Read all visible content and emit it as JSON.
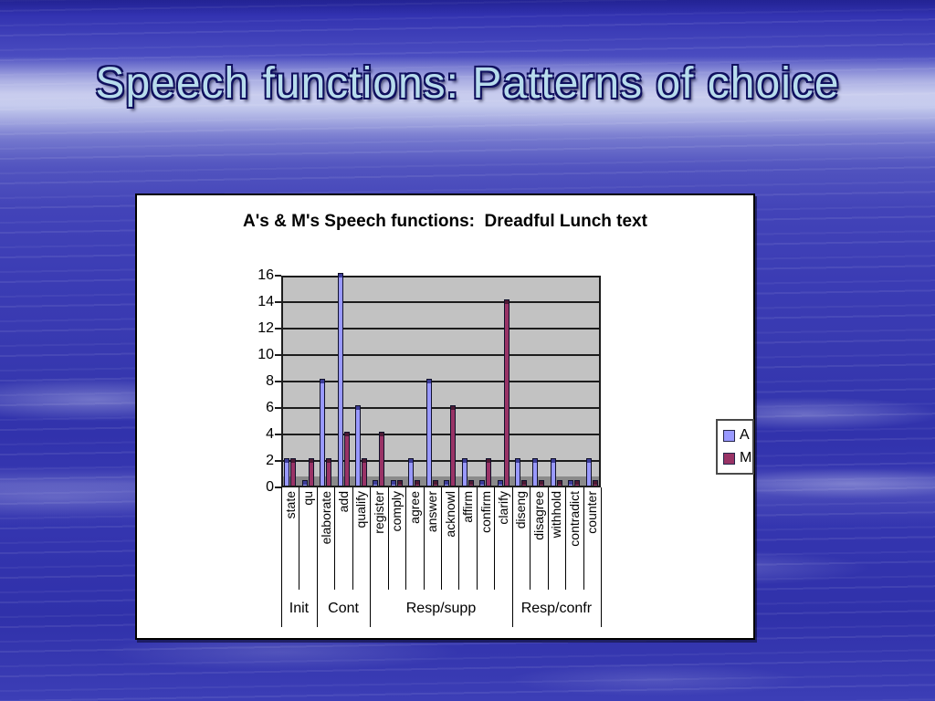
{
  "slide": {
    "title": "Speech functions: Patterns of choice"
  },
  "chart_data": {
    "type": "bar",
    "title": "A's & M's Speech functions:  Dreadful Lunch text",
    "categories": [
      "state",
      "qu",
      "elaborate",
      "add",
      "qualify",
      "register",
      "comply",
      "agree",
      "answer",
      "acknowl",
      "affirm",
      "confirm",
      "clarify",
      "diseng",
      "disagree",
      "withhold",
      "contradict",
      "counter"
    ],
    "groups": [
      {
        "label": "Init",
        "count": 2
      },
      {
        "label": "Cont",
        "count": 3
      },
      {
        "label": "Resp/supp",
        "count": 8
      },
      {
        "label": "Resp/confr",
        "count": 5
      }
    ],
    "series": [
      {
        "name": "A",
        "color": "#9999ff",
        "cap_color": "#3d3d99",
        "values": [
          2,
          0,
          8,
          16,
          6,
          0,
          0,
          2,
          8,
          0,
          2,
          0,
          0,
          2,
          2,
          2,
          0,
          2
        ]
      },
      {
        "name": "M",
        "color": "#993366",
        "cap_color": "#4d1a33",
        "values": [
          2,
          2,
          2,
          4,
          2,
          4,
          0,
          0,
          0,
          6,
          0,
          2,
          14,
          0,
          0,
          0,
          0,
          0
        ]
      }
    ],
    "y_axis": {
      "min": 0,
      "max": 16,
      "step": 2
    },
    "plot_bg": "#c2c2c2",
    "floor_color": "#8a8a8a",
    "grid": true,
    "legend_position": "right",
    "xlabel": "",
    "ylabel": ""
  }
}
